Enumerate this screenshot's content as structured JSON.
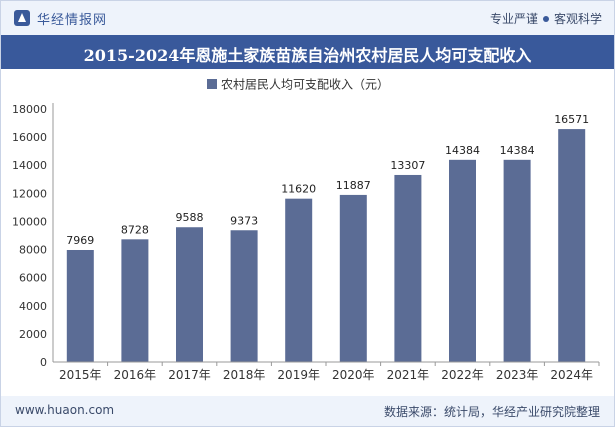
{
  "header": {
    "brand": "华经情报网",
    "tagline_left": "专业严谨",
    "tagline_right": "客观科学"
  },
  "title": "2015-2024年恩施土家族苗族自治州农村居民人均可支配收入",
  "footer": {
    "site": "www.huaon.com",
    "source": "数据来源：统计局，华经产业研究院整理"
  },
  "colors": {
    "bar": "#5b6c95",
    "title_bg": "#39599b",
    "header_bg": "#eef3fb"
  },
  "chart_data": {
    "type": "bar",
    "categories": [
      "2015年",
      "2016年",
      "2017年",
      "2018年",
      "2019年",
      "2020年",
      "2021年",
      "2022年",
      "2023年",
      "2024年"
    ],
    "series": [
      {
        "name": "农村居民人均可支配收入（元）",
        "values": [
          7969,
          8728,
          9588,
          9373,
          11620,
          11887,
          13307,
          14384,
          14384,
          16571
        ]
      }
    ],
    "ylim": [
      0,
      18000
    ],
    "yticks": [
      0,
      2000,
      4000,
      6000,
      8000,
      10000,
      12000,
      14000,
      16000,
      18000
    ],
    "legend_position": "top-center",
    "grid": false
  }
}
